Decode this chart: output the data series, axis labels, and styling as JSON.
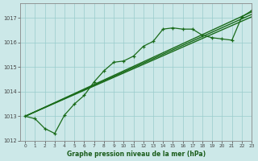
{
  "title": "Graphe pression niveau de la mer (hPa)",
  "bg_color": "#cce8e8",
  "grid_color": "#99cccc",
  "line_color": "#1a6b1a",
  "xlim": [
    -0.5,
    23
  ],
  "ylim": [
    1012,
    1017.6
  ],
  "xticks": [
    0,
    1,
    2,
    3,
    4,
    5,
    6,
    7,
    8,
    9,
    10,
    11,
    12,
    13,
    14,
    15,
    16,
    17,
    18,
    19,
    20,
    21,
    22,
    23
  ],
  "yticks": [
    1012,
    1013,
    1014,
    1015,
    1016,
    1017
  ],
  "series": [
    {
      "x": [
        0,
        1,
        2,
        3,
        4,
        5,
        6,
        7,
        8,
        9,
        10,
        11,
        12,
        13,
        14,
        15,
        16,
        17,
        18,
        19,
        20,
        21,
        22,
        23
      ],
      "y": [
        1013.0,
        1012.9,
        1012.5,
        1012.3,
        1013.05,
        1013.5,
        1013.85,
        1014.4,
        1014.85,
        1015.2,
        1015.25,
        1015.45,
        1015.85,
        1016.05,
        1016.55,
        1016.6,
        1016.55,
        1016.55,
        1016.3,
        1016.2,
        1016.15,
        1016.1,
        1017.05,
        1017.3
      ],
      "marker": "+"
    },
    {
      "x": [
        0,
        23
      ],
      "y": [
        1013.0,
        1017.15
      ],
      "marker": null,
      "lw": 1.0
    },
    {
      "x": [
        0,
        23
      ],
      "y": [
        1013.0,
        1017.05
      ],
      "marker": null,
      "lw": 1.0
    },
    {
      "x": [
        0,
        23
      ],
      "y": [
        1013.0,
        1017.25
      ],
      "marker": null,
      "lw": 1.0
    }
  ]
}
